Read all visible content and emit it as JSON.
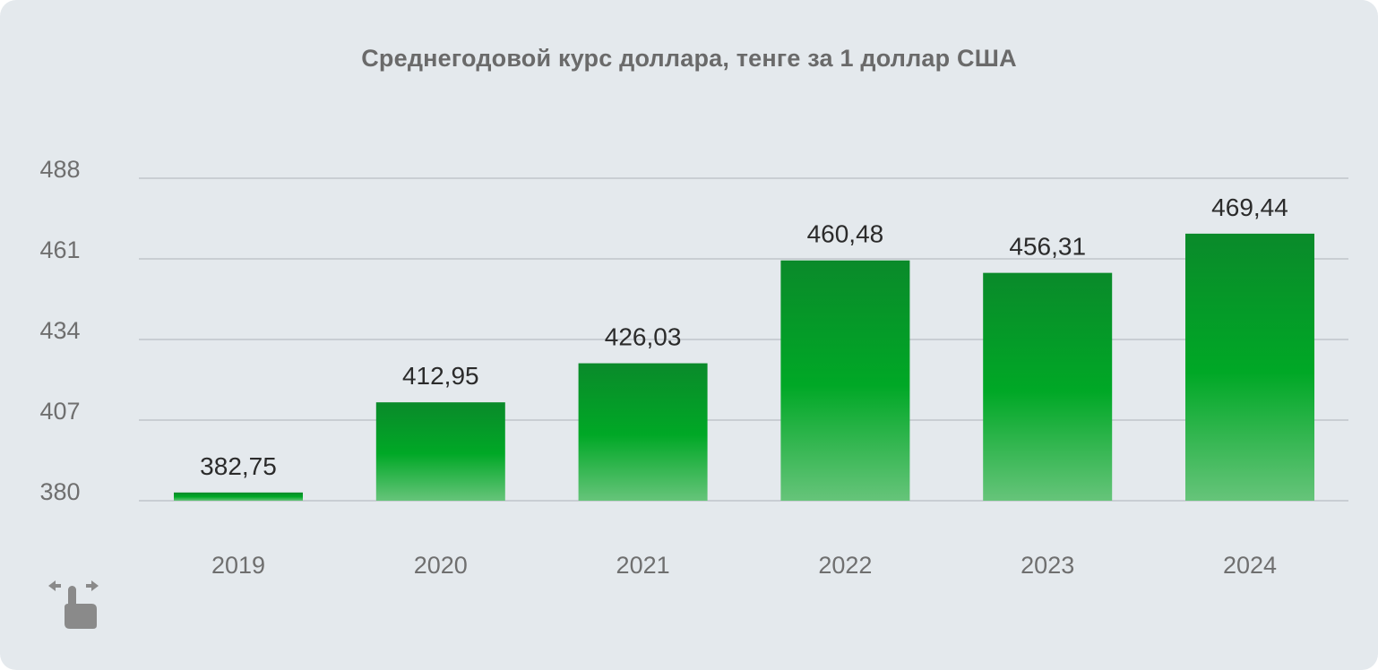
{
  "chart_data": {
    "type": "bar",
    "title": "Среднегодовой курс доллара, тенге за 1 доллар США",
    "xlabel": "",
    "ylabel": "",
    "categories": [
      "2019",
      "2020",
      "2021",
      "2022",
      "2023",
      "2024"
    ],
    "values": [
      382.75,
      412.95,
      426.03,
      460.48,
      456.31,
      469.44
    ],
    "value_labels": [
      "382,75",
      "412,95",
      "426,03",
      "460,48",
      "456,31",
      "469,44"
    ],
    "ylim": [
      380,
      488
    ],
    "yticks": [
      380,
      407,
      434,
      461,
      488
    ],
    "ytick_labels": [
      "380",
      "407",
      "434",
      "461",
      "488"
    ],
    "grid": true,
    "legend": "none",
    "colors": {
      "bar_top": "#0a8a2a",
      "bar_mid": "#00a826",
      "bar_bottom": "#66c47a",
      "grid": "#c9ced3",
      "tick_text": "#6f6f6f",
      "label_text": "#2b2b2b",
      "background": "#e4e9ed"
    }
  },
  "swipe_hint": {
    "icon": "swipe-horizontal-icon"
  }
}
